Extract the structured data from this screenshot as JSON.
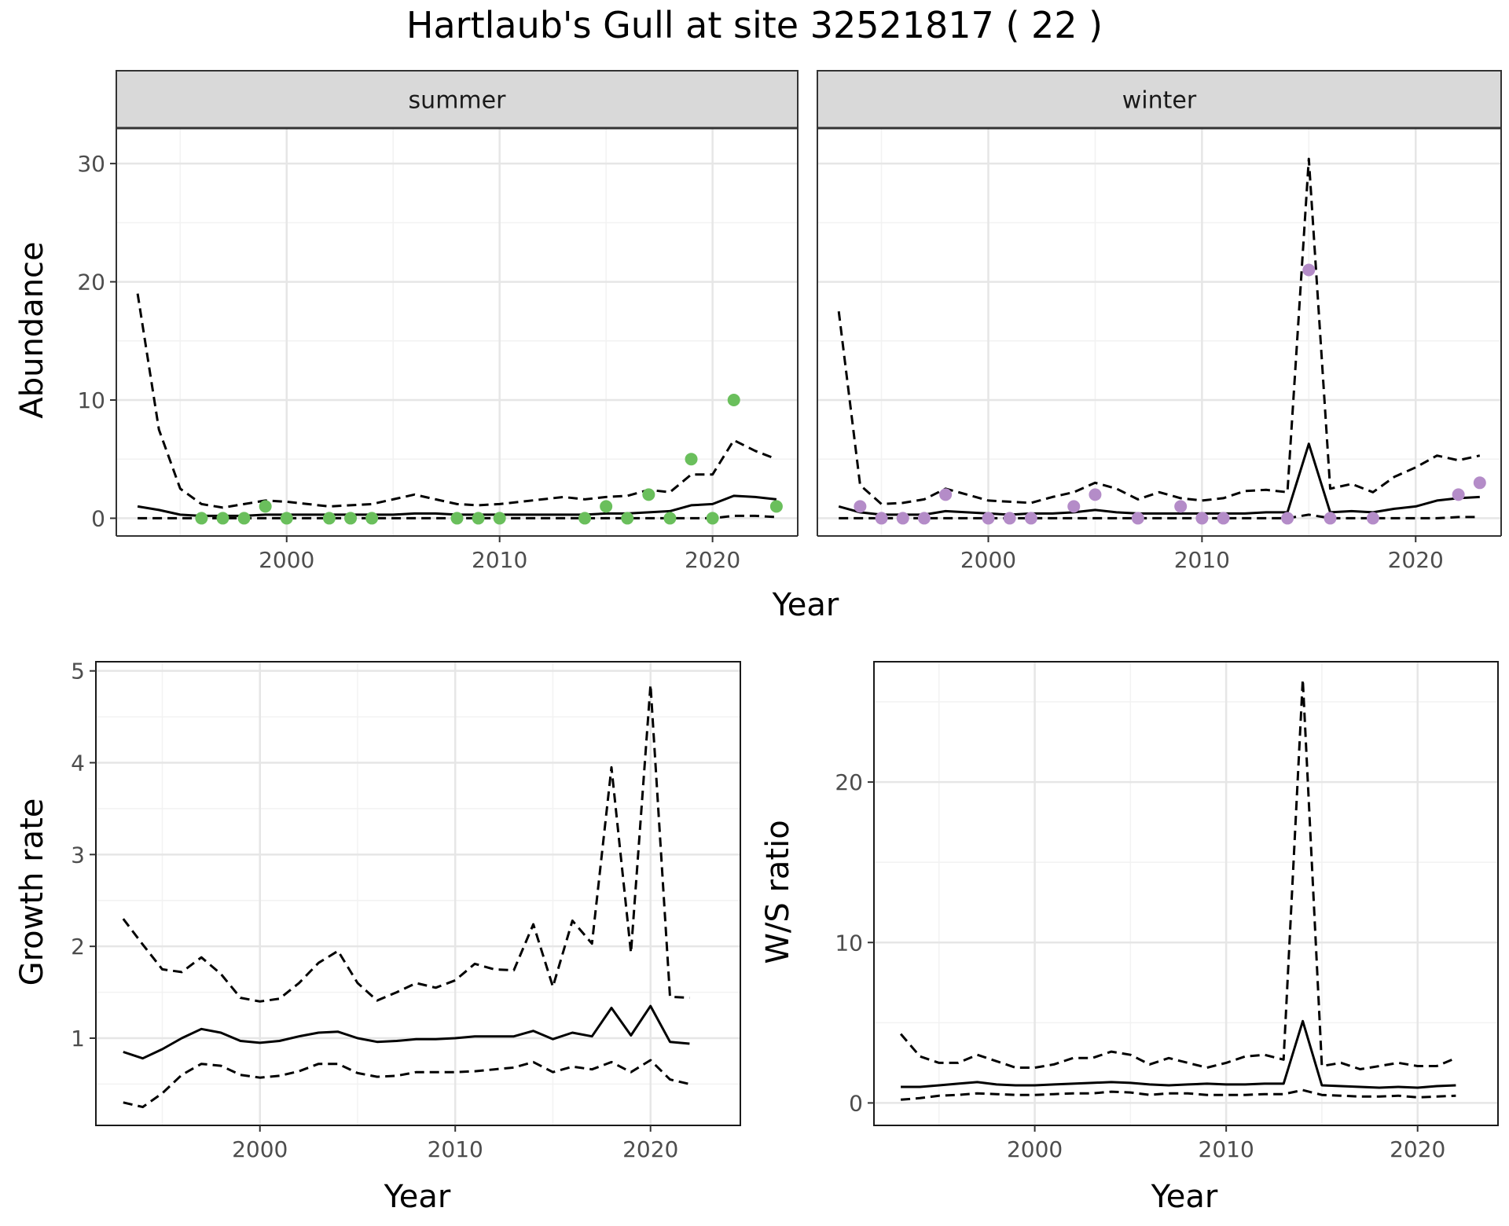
{
  "title": "Hartlaub's Gull at site 32521817 ( 22 )",
  "colors": {
    "summer_points": "#6abf5c",
    "winter_points": "#b48cc8",
    "lines": "#000000",
    "grid_major": "#e6e6e6",
    "grid_minor": "#f2f2f2",
    "strip_bg": "#d9d9d9"
  },
  "chart_data": [
    {
      "type": "line",
      "panel": "summer",
      "strip_label": "summer",
      "xlabel": "Year",
      "ylabel": "Abundance",
      "xlim": [
        1992,
        2024
      ],
      "ylim": [
        -1.5,
        33
      ],
      "xticks": [
        2000,
        2010,
        2020
      ],
      "yticks": [
        0,
        10,
        20,
        30
      ],
      "grid": true,
      "x": [
        1993,
        1994,
        1995,
        1996,
        1997,
        1998,
        1999,
        2000,
        2001,
        2002,
        2003,
        2004,
        2005,
        2006,
        2007,
        2008,
        2009,
        2010,
        2011,
        2012,
        2013,
        2014,
        2015,
        2016,
        2017,
        2018,
        2019,
        2020,
        2021,
        2022,
        2023
      ],
      "series": [
        {
          "style": "solid",
          "values": [
            1.0,
            0.7,
            0.3,
            0.2,
            0.2,
            0.2,
            0.3,
            0.3,
            0.3,
            0.3,
            0.3,
            0.3,
            0.3,
            0.4,
            0.4,
            0.3,
            0.3,
            0.3,
            0.3,
            0.3,
            0.3,
            0.3,
            0.4,
            0.4,
            0.5,
            0.6,
            1.1,
            1.2,
            1.9,
            1.8,
            1.6
          ]
        },
        {
          "style": "dashed",
          "values": [
            19,
            7.5,
            2.5,
            1.2,
            0.9,
            1.2,
            1.5,
            1.4,
            1.2,
            1.0,
            1.1,
            1.2,
            1.6,
            2.0,
            1.6,
            1.2,
            1.1,
            1.2,
            1.4,
            1.6,
            1.8,
            1.6,
            1.8,
            1.9,
            2.4,
            2.2,
            3.7,
            3.7,
            6.6,
            5.7,
            5.0
          ]
        },
        {
          "style": "dashed",
          "values": [
            0,
            0,
            0,
            0,
            0,
            0,
            0,
            0,
            0,
            0,
            0,
            0,
            0,
            0,
            0,
            0,
            0,
            0,
            0,
            0,
            0,
            0,
            0,
            0,
            0,
            0,
            0,
            0,
            0.2,
            0.2,
            0.1
          ]
        }
      ],
      "points": {
        "x": [
          1996,
          1997,
          1998,
          1999,
          2000,
          2002,
          2003,
          2004,
          2008,
          2009,
          2010,
          2014,
          2015,
          2016,
          2017,
          2018,
          2019,
          2020,
          2021,
          2023
        ],
        "y": [
          0,
          0,
          0,
          1,
          0,
          0,
          0,
          0,
          0,
          0,
          0,
          0,
          1,
          0,
          2,
          0,
          5,
          0,
          10,
          1
        ]
      }
    },
    {
      "type": "line",
      "panel": "winter",
      "strip_label": "winter",
      "xlabel": "Year",
      "ylabel": "Abundance",
      "xlim": [
        1992,
        2024
      ],
      "ylim": [
        -1.5,
        33
      ],
      "xticks": [
        2000,
        2010,
        2020
      ],
      "yticks": [
        0,
        10,
        20,
        30
      ],
      "grid": true,
      "x": [
        1993,
        1994,
        1995,
        1996,
        1997,
        1998,
        1999,
        2000,
        2001,
        2002,
        2003,
        2004,
        2005,
        2006,
        2007,
        2008,
        2009,
        2010,
        2011,
        2012,
        2013,
        2014,
        2015,
        2016,
        2017,
        2018,
        2019,
        2020,
        2021,
        2022,
        2023
      ],
      "series": [
        {
          "style": "solid",
          "values": [
            1.0,
            0.5,
            0.3,
            0.3,
            0.3,
            0.6,
            0.5,
            0.4,
            0.3,
            0.4,
            0.4,
            0.5,
            0.7,
            0.5,
            0.4,
            0.4,
            0.4,
            0.4,
            0.4,
            0.4,
            0.5,
            0.5,
            6.3,
            0.5,
            0.6,
            0.5,
            0.8,
            1.0,
            1.5,
            1.7,
            1.8
          ]
        },
        {
          "style": "dashed",
          "values": [
            17.5,
            2.8,
            1.2,
            1.3,
            1.6,
            2.5,
            2.0,
            1.5,
            1.4,
            1.3,
            1.8,
            2.2,
            3.0,
            2.5,
            1.6,
            2.2,
            1.7,
            1.5,
            1.7,
            2.3,
            2.4,
            2.2,
            30.4,
            2.5,
            2.9,
            2.2,
            3.5,
            4.3,
            5.3,
            4.9,
            5.3
          ]
        },
        {
          "style": "dashed",
          "values": [
            0,
            0,
            0,
            0,
            0,
            0,
            0,
            0,
            0,
            0,
            0,
            0,
            0,
            0,
            0,
            0,
            0,
            0,
            0,
            0,
            0,
            0,
            0.3,
            0,
            0,
            0,
            0,
            0,
            0,
            0.1,
            0.1
          ]
        }
      ],
      "points": {
        "x": [
          1994,
          1995,
          1996,
          1997,
          1998,
          2000,
          2001,
          2002,
          2004,
          2005,
          2007,
          2009,
          2010,
          2011,
          2014,
          2015,
          2016,
          2018,
          2022,
          2023
        ],
        "y": [
          1,
          0,
          0,
          0,
          2,
          0,
          0,
          0,
          1,
          2,
          0,
          1,
          0,
          0,
          0,
          21,
          0,
          0,
          2,
          3
        ]
      }
    },
    {
      "type": "line",
      "panel": "growth",
      "xlabel": "Year",
      "ylabel": "Growth rate",
      "xlim": [
        1991.6,
        2024.6
      ],
      "ylim": [
        0.05,
        5.1
      ],
      "xticks": [
        2000,
        2010,
        2020
      ],
      "yticks": [
        1,
        2,
        3,
        4,
        5
      ],
      "grid": true,
      "x": [
        1993,
        1994,
        1995,
        1996,
        1997,
        1998,
        1999,
        2000,
        2001,
        2002,
        2003,
        2004,
        2005,
        2006,
        2007,
        2008,
        2009,
        2010,
        2011,
        2012,
        2013,
        2014,
        2015,
        2016,
        2017,
        2018,
        2019,
        2020,
        2021,
        2022
      ],
      "series": [
        {
          "style": "solid",
          "values": [
            0.85,
            0.78,
            0.88,
            1.0,
            1.1,
            1.06,
            0.97,
            0.95,
            0.97,
            1.02,
            1.06,
            1.07,
            1.0,
            0.96,
            0.97,
            0.99,
            0.99,
            1.0,
            1.02,
            1.02,
            1.02,
            1.08,
            0.99,
            1.06,
            1.02,
            1.33,
            1.03,
            1.35,
            0.96,
            0.94
          ]
        },
        {
          "style": "dashed",
          "values": [
            2.3,
            2.02,
            1.75,
            1.72,
            1.88,
            1.7,
            1.44,
            1.4,
            1.43,
            1.6,
            1.82,
            1.95,
            1.6,
            1.41,
            1.5,
            1.6,
            1.55,
            1.63,
            1.81,
            1.75,
            1.74,
            2.24,
            1.56,
            2.28,
            2.03,
            3.95,
            1.93,
            4.85,
            1.45,
            1.44
          ]
        },
        {
          "style": "dashed",
          "values": [
            0.3,
            0.25,
            0.4,
            0.6,
            0.72,
            0.7,
            0.6,
            0.57,
            0.59,
            0.64,
            0.72,
            0.72,
            0.62,
            0.58,
            0.59,
            0.63,
            0.63,
            0.63,
            0.64,
            0.66,
            0.68,
            0.74,
            0.63,
            0.69,
            0.66,
            0.74,
            0.63,
            0.76,
            0.55,
            0.5
          ]
        }
      ]
    },
    {
      "type": "line",
      "panel": "ratio",
      "xlabel": "Year",
      "ylabel": "W/S ratio",
      "xlim": [
        1991.6,
        2024.2
      ],
      "ylim": [
        -1.4,
        27.5
      ],
      "xticks": [
        2000,
        2010,
        2020
      ],
      "yticks": [
        0,
        10,
        20
      ],
      "grid": true,
      "x": [
        1993,
        1994,
        1995,
        1996,
        1997,
        1998,
        1999,
        2000,
        2001,
        2002,
        2003,
        2004,
        2005,
        2006,
        2007,
        2008,
        2009,
        2010,
        2011,
        2012,
        2013,
        2014,
        2015,
        2016,
        2017,
        2018,
        2019,
        2020,
        2021,
        2022
      ],
      "series": [
        {
          "style": "solid",
          "values": [
            1.0,
            1.0,
            1.1,
            1.2,
            1.3,
            1.15,
            1.1,
            1.1,
            1.15,
            1.2,
            1.25,
            1.3,
            1.25,
            1.15,
            1.1,
            1.15,
            1.2,
            1.15,
            1.15,
            1.2,
            1.2,
            5.1,
            1.1,
            1.05,
            1.0,
            0.95,
            1.0,
            0.95,
            1.05,
            1.1
          ]
        },
        {
          "style": "dashed",
          "values": [
            4.3,
            2.9,
            2.5,
            2.5,
            3.0,
            2.6,
            2.2,
            2.2,
            2.4,
            2.8,
            2.8,
            3.2,
            3.0,
            2.4,
            2.8,
            2.5,
            2.2,
            2.5,
            2.9,
            3.0,
            2.7,
            26.4,
            2.3,
            2.5,
            2.1,
            2.3,
            2.5,
            2.3,
            2.3,
            2.8
          ]
        },
        {
          "style": "dashed",
          "values": [
            0.2,
            0.3,
            0.45,
            0.5,
            0.6,
            0.55,
            0.5,
            0.5,
            0.55,
            0.6,
            0.6,
            0.7,
            0.65,
            0.5,
            0.6,
            0.6,
            0.5,
            0.5,
            0.5,
            0.55,
            0.55,
            0.8,
            0.5,
            0.45,
            0.4,
            0.4,
            0.45,
            0.35,
            0.4,
            0.45
          ]
        }
      ]
    }
  ]
}
